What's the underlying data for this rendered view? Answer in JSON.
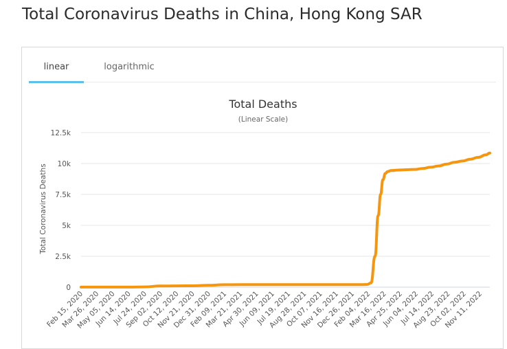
{
  "page": {
    "title": "Total Coronavirus Deaths in China, Hong Kong SAR"
  },
  "tabs": [
    {
      "label": "linear",
      "active": true
    },
    {
      "label": "logarithmic",
      "active": false
    }
  ],
  "colors": {
    "series": "#f5960e",
    "active_tab": "#5bc0eb"
  },
  "chart_data": {
    "type": "line",
    "title": "Total Deaths",
    "subtitle": "(Linear Scale)",
    "xlabel": "",
    "ylabel": "Total Coronavirus Deaths",
    "ylim": [
      0,
      12500
    ],
    "yticks": [
      0,
      2500,
      5000,
      7500,
      10000,
      12500
    ],
    "ytick_labels": [
      "0",
      "2.5k",
      "5k",
      "7.5k",
      "10k",
      "12.5k"
    ],
    "xtick_labels": [
      "Feb 15, 2020",
      "Mar 26, 2020",
      "May 05, 2020",
      "Jun 14, 2020",
      "Jul 24, 2020",
      "Sep 02, 2020",
      "Oct 12, 2020",
      "Nov 21, 2020",
      "Dec 31, 2020",
      "Feb 09, 2021",
      "Mar 21, 2021",
      "Apr 30, 2021",
      "Jun 09, 2021",
      "Jul 19, 2021",
      "Aug 28, 2021",
      "Oct 07, 2021",
      "Nov 16, 2021",
      "Dec 26, 2021",
      "Feb 04, 2022",
      "Mar 16, 2022",
      "Apr 25, 2022",
      "Jun 04, 2022",
      "Jul 14, 2022",
      "Aug 23, 2022",
      "Oct 02, 2022",
      "Nov 11, 2022"
    ],
    "grid": true,
    "legend": "none",
    "series": [
      {
        "x": [
          "2020-02-15",
          "2020-03-26",
          "2020-05-05",
          "2020-06-14",
          "2020-07-24",
          "2020-09-02",
          "2020-10-12",
          "2020-11-21",
          "2020-12-31",
          "2021-02-09",
          "2021-03-21",
          "2021-04-30",
          "2021-06-09",
          "2021-07-19",
          "2021-08-28",
          "2021-10-07",
          "2021-11-16",
          "2021-12-26",
          "2022-01-25",
          "2022-02-04",
          "2022-02-14",
          "2022-02-24",
          "2022-03-04",
          "2022-03-10",
          "2022-03-16",
          "2022-03-22",
          "2022-03-28",
          "2022-04-05",
          "2022-04-25",
          "2022-05-15",
          "2022-06-04",
          "2022-06-24",
          "2022-07-14",
          "2022-08-03",
          "2022-08-23",
          "2022-09-12",
          "2022-10-02",
          "2022-10-22",
          "2022-11-11",
          "2022-11-30",
          "2022-12-10"
        ],
        "values": [
          4,
          4,
          4,
          7,
          20,
          95,
          105,
          110,
          150,
          200,
          205,
          210,
          212,
          212,
          213,
          213,
          213,
          213,
          213,
          215,
          350,
          2500,
          5800,
          7500,
          8700,
          9200,
          9350,
          9430,
          9470,
          9500,
          9520,
          9600,
          9700,
          9800,
          9950,
          10100,
          10200,
          10350,
          10500,
          10700,
          10850
        ]
      }
    ]
  }
}
